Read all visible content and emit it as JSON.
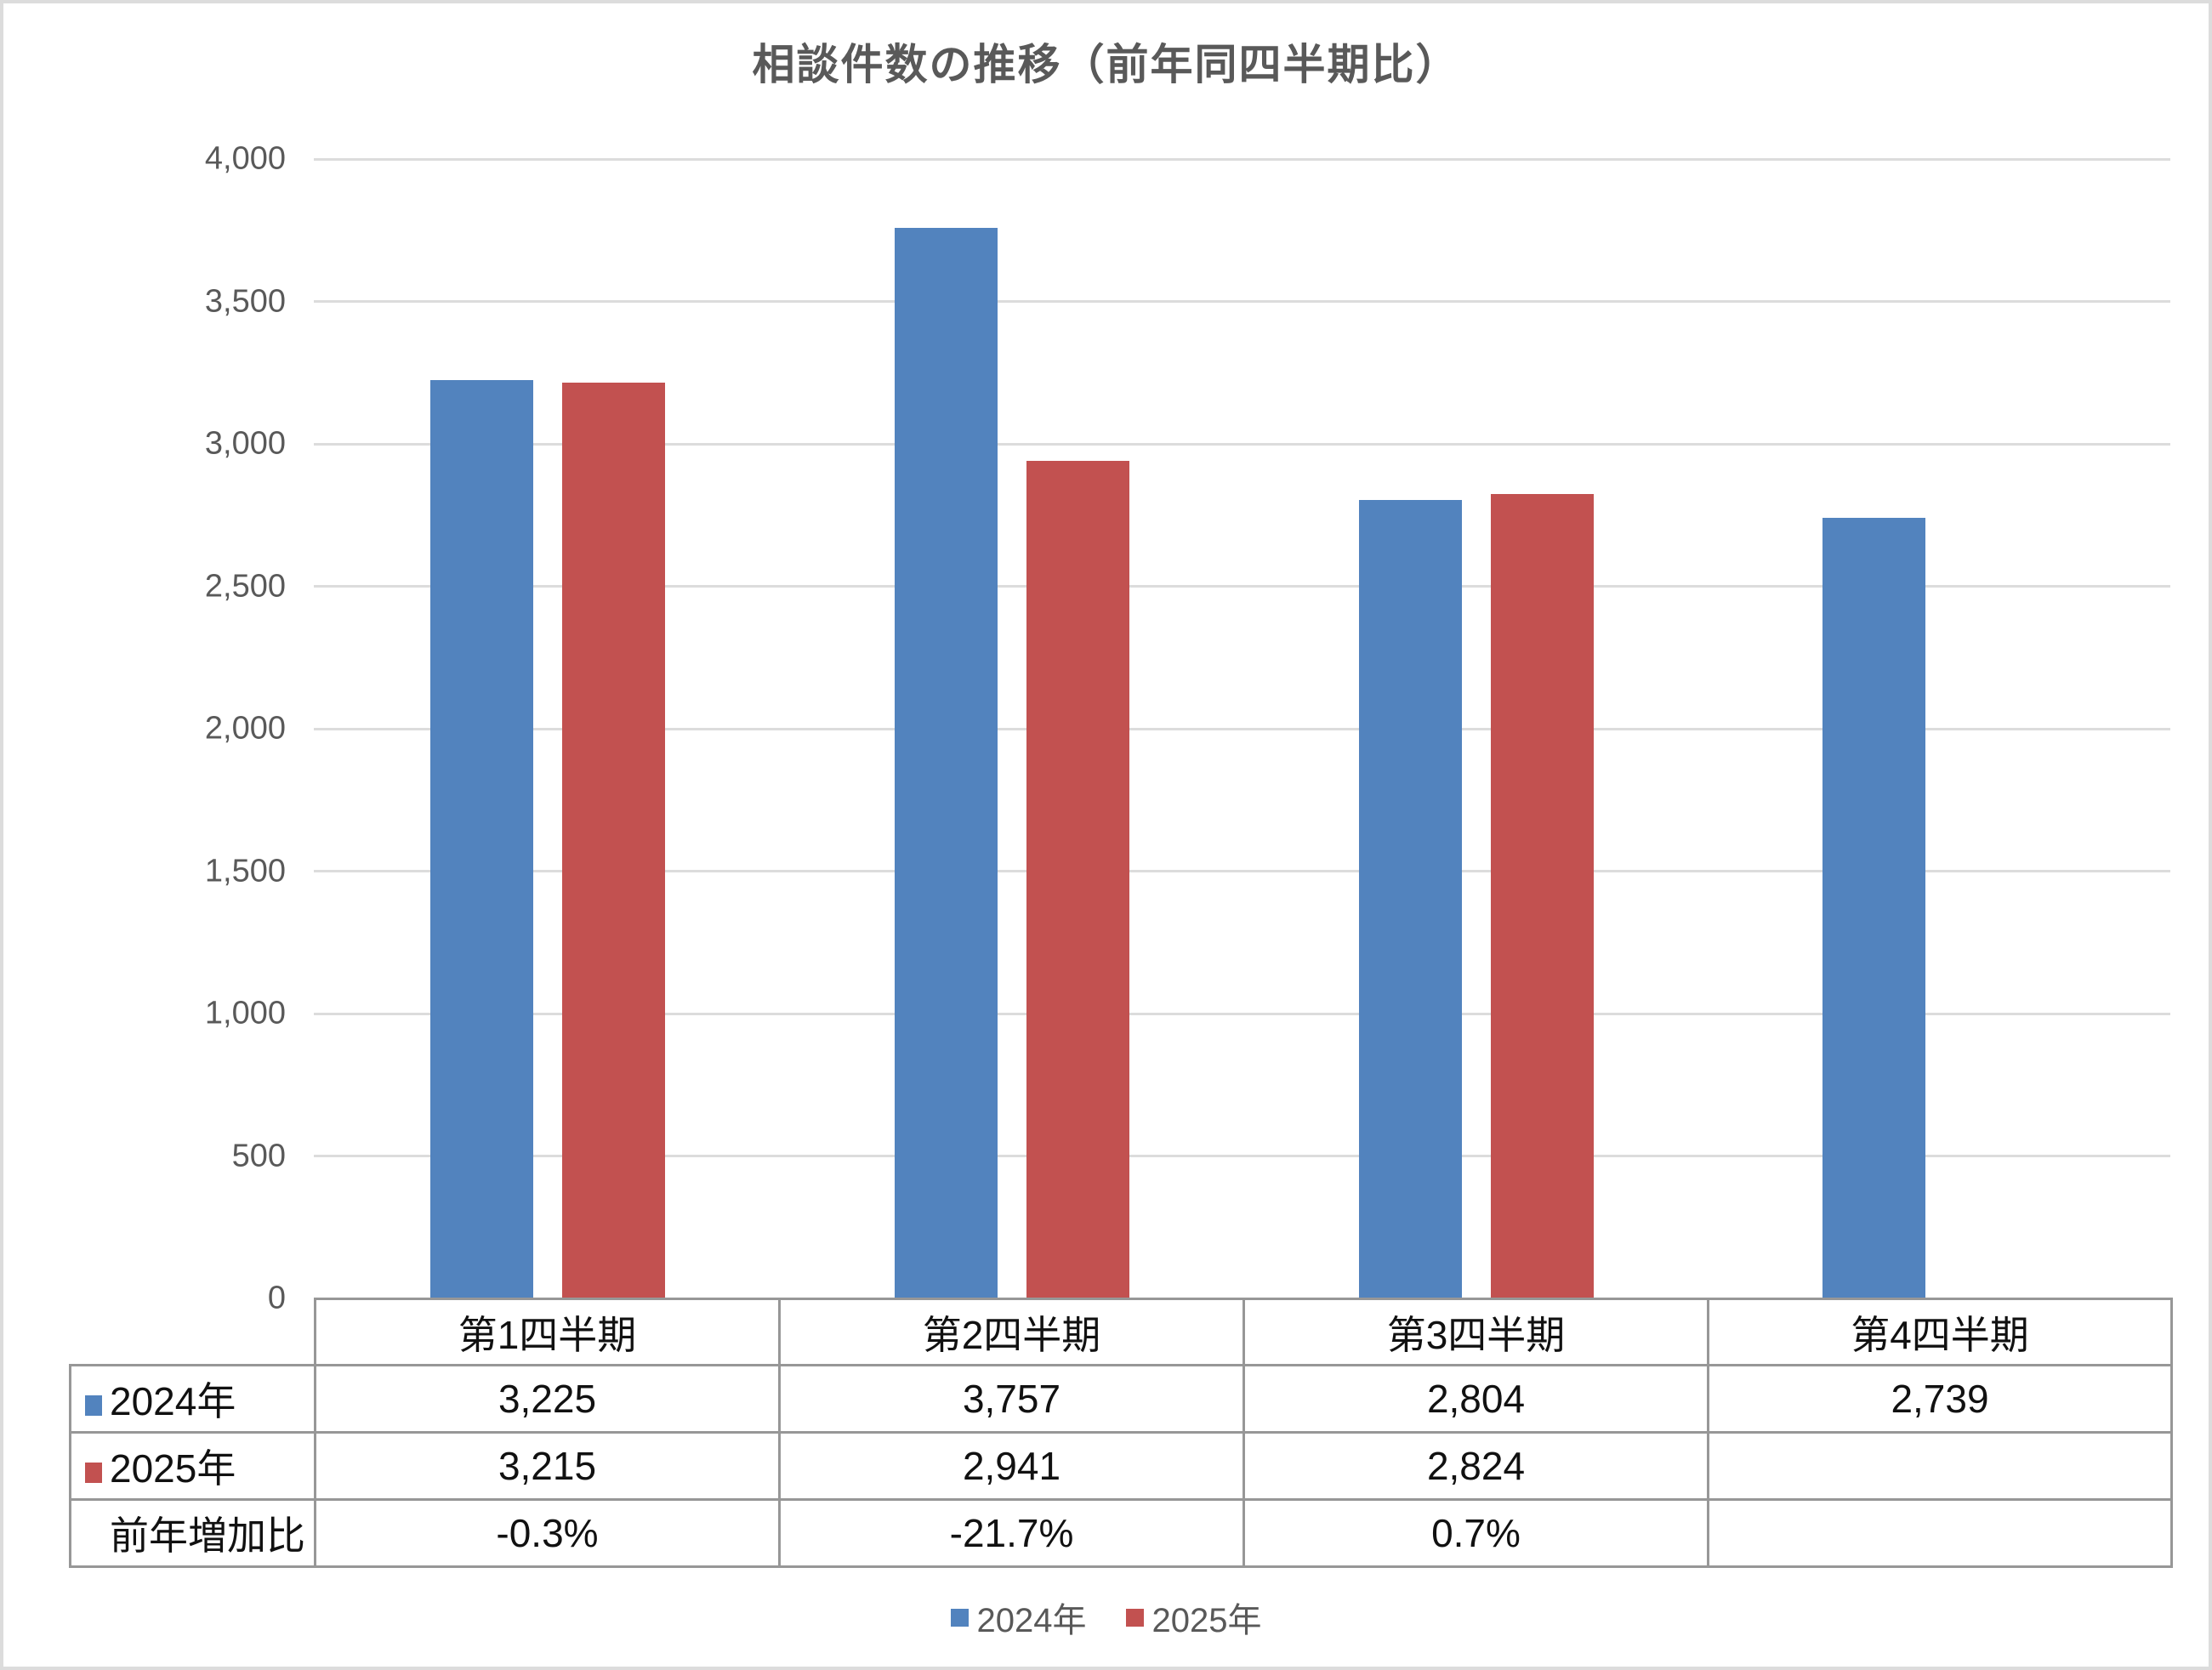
{
  "title": "相談件数の推移（前年同四半期比）",
  "chart_data": {
    "type": "bar",
    "categories": [
      "第1四半期",
      "第2四半期",
      "第3四半期",
      "第4四半期"
    ],
    "series": [
      {
        "name": "2024年",
        "color": "#5283be",
        "values": [
          3225,
          3757,
          2804,
          2739
        ]
      },
      {
        "name": "2025年",
        "color": "#c25150",
        "values": [
          3215,
          2941,
          2824,
          null
        ]
      }
    ],
    "ylim": [
      0,
      4000
    ],
    "ytick_step": 500,
    "grid": "horizontal",
    "legend_position": "bottom"
  },
  "y_axis": {
    "tick_labels": [
      "0",
      "500",
      "1,000",
      "1,500",
      "2,000",
      "2,500",
      "3,000",
      "3,500",
      "4,000"
    ]
  },
  "table": {
    "column_headers": [
      "第1四半期",
      "第2四半期",
      "第3四半期",
      "第4四半期"
    ],
    "rows": [
      {
        "label": "2024年",
        "marker_color": "#5283be",
        "cells": [
          "3,225",
          "3,757",
          "2,804",
          "2,739"
        ]
      },
      {
        "label": "2025年",
        "marker_color": "#c25150",
        "cells": [
          "3,215",
          "2,941",
          "2,824",
          ""
        ]
      },
      {
        "label": "前年増加比",
        "marker_color": null,
        "cells": [
          "-0.3%",
          "-21.7%",
          "0.7%",
          ""
        ]
      }
    ]
  },
  "legend": {
    "items": [
      {
        "label": "2024年",
        "color": "#5283be"
      },
      {
        "label": "2025年",
        "color": "#c25150"
      }
    ]
  },
  "colors": {
    "series_2024": "#5283be",
    "series_2025": "#c25150",
    "axis_text": "#595959",
    "title_text": "#595959",
    "gridline": "#dcdcdc",
    "table_border": "#979797",
    "table_text": "#111111"
  }
}
